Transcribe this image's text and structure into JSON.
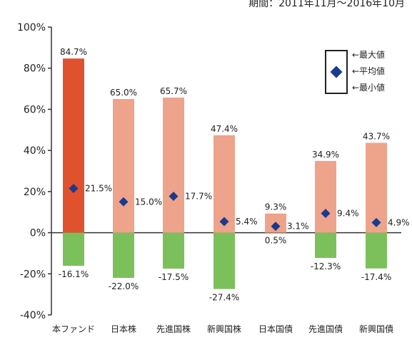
{
  "header": {
    "period_text": "期間：2011年11月～2016年10月"
  },
  "legend": {
    "max_label": "←最大値",
    "avg_label": "←平均値",
    "min_label": "←最小値"
  },
  "colors": {
    "fund_positive": "#e0522e",
    "other_positive": "#eda48a",
    "negative": "#7cc05c",
    "average_marker": "#1a3a8f"
  },
  "chart_data": {
    "type": "bar",
    "title": "",
    "xlabel": "",
    "ylabel": "",
    "ylim": [
      -40,
      100
    ],
    "y_ticks": [
      -40,
      -20,
      0,
      20,
      40,
      60,
      80,
      100
    ],
    "y_tick_labels": [
      "-40%",
      "-20%",
      "0%",
      "20%",
      "40%",
      "60%",
      "80%",
      "100%"
    ],
    "categories": [
      "本ファンド",
      "日本株",
      "先進国株",
      "新興国株",
      "日本国債",
      "先進国債",
      "新興国債"
    ],
    "series": [
      {
        "name": "最大値",
        "values": [
          84.7,
          65.0,
          65.7,
          47.4,
          9.3,
          34.9,
          43.7
        ],
        "labels": [
          "84.7%",
          "65.0%",
          "65.7%",
          "47.4%",
          "9.3%",
          "34.9%",
          "43.7%"
        ]
      },
      {
        "name": "平均値",
        "values": [
          21.5,
          15.0,
          17.7,
          5.4,
          3.1,
          9.4,
          4.9
        ],
        "labels": [
          "21.5%",
          "15.0%",
          "17.7%",
          "5.4%",
          "3.1%",
          "9.4%",
          "4.9%"
        ]
      },
      {
        "name": "最小値",
        "values": [
          -16.1,
          -22.0,
          -17.5,
          -27.4,
          0.5,
          -12.3,
          -17.4
        ],
        "labels": [
          "-16.1%",
          "-22.0%",
          "-17.5%",
          "-27.4%",
          "0.5%",
          "-12.3%",
          "-17.4%"
        ]
      }
    ],
    "grid": false,
    "legend_position": "top-right"
  }
}
